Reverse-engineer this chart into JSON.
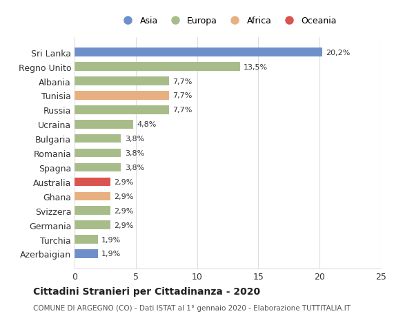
{
  "title": "Cittadini Stranieri per Cittadinanza - 2020",
  "subtitle": "COMUNE DI ARGEGNO (CO) - Dati ISTAT al 1° gennaio 2020 - Elaborazione TUTTITALIA.IT",
  "countries": [
    "Sri Lanka",
    "Regno Unito",
    "Albania",
    "Tunisia",
    "Russia",
    "Ucraina",
    "Bulgaria",
    "Romania",
    "Spagna",
    "Australia",
    "Ghana",
    "Svizzera",
    "Germania",
    "Turchia",
    "Azerbaigian"
  ],
  "values": [
    20.2,
    13.5,
    7.7,
    7.7,
    7.7,
    4.8,
    3.8,
    3.8,
    3.8,
    2.9,
    2.9,
    2.9,
    2.9,
    1.9,
    1.9
  ],
  "labels": [
    "20,2%",
    "13,5%",
    "7,7%",
    "7,7%",
    "7,7%",
    "4,8%",
    "3,8%",
    "3,8%",
    "3,8%",
    "2,9%",
    "2,9%",
    "2,9%",
    "2,9%",
    "1,9%",
    "1,9%"
  ],
  "continents": [
    "Asia",
    "Europa",
    "Europa",
    "Africa",
    "Europa",
    "Europa",
    "Europa",
    "Europa",
    "Europa",
    "Oceania",
    "Africa",
    "Europa",
    "Europa",
    "Europa",
    "Asia"
  ],
  "colors": {
    "Asia": "#6e8fc9",
    "Europa": "#a8bc8a",
    "Africa": "#e8b080",
    "Oceania": "#d9534f"
  },
  "legend_order": [
    "Asia",
    "Europa",
    "Africa",
    "Oceania"
  ],
  "xlim": [
    0,
    25
  ],
  "xticks": [
    0,
    5,
    10,
    15,
    20,
    25
  ],
  "background_color": "#ffffff",
  "grid_color": "#dddddd",
  "bar_height": 0.6
}
